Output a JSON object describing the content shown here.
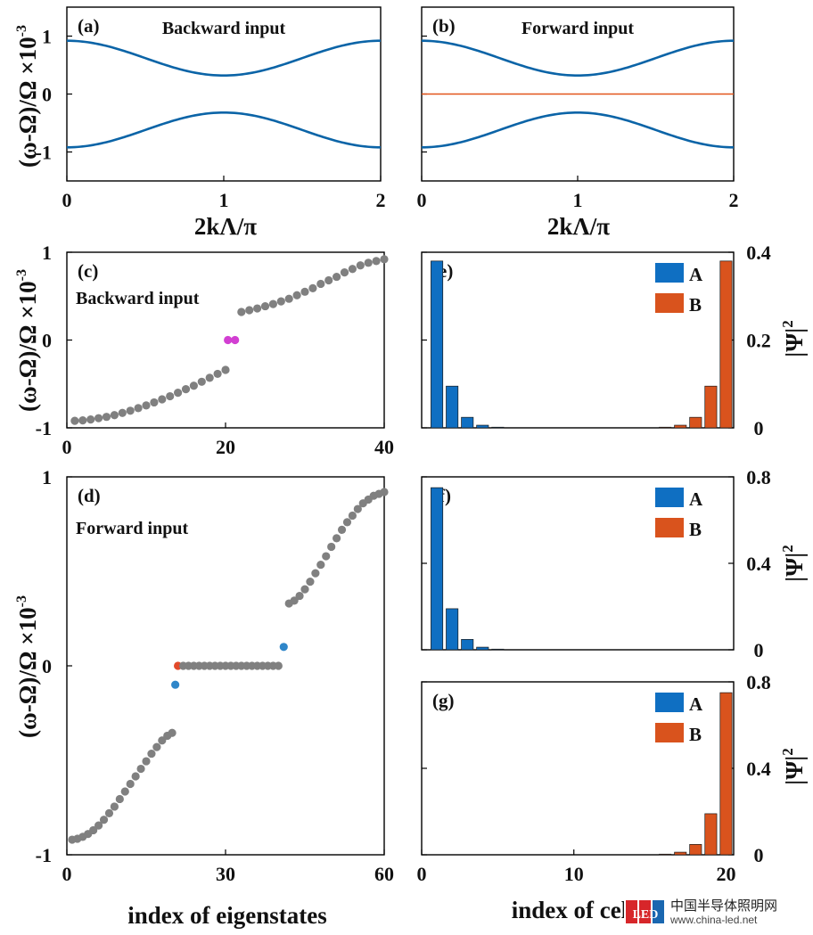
{
  "figure": {
    "y_axis_label_top": "(ω-Ω)/Ω ×10",
    "y_axis_label_mid": "(ω-Ω)/Ω ×10",
    "y_axis_label_bottom": "(ω-Ω)/Ω ×10",
    "y_axis_exponent": "-3",
    "x_axis_label_band": "2kΛ/π",
    "x_axis_label_eigen": "index of eigenstates",
    "x_axis_label_cells": "index of cells",
    "psi_label": "|Ψ|",
    "psi_exp": "2"
  },
  "colors": {
    "band": "#0b64a7",
    "flat": "#e2541b",
    "gray_dot": "#808080",
    "magenta": "#d23fd2",
    "blue_dot": "#2f86c9",
    "red_dot": "#e24a2a",
    "bar_A": "#0f6fc2",
    "bar_B": "#d9531d"
  },
  "chart_data": [
    {
      "id": "a",
      "type": "line",
      "panel_label": "(a)",
      "title": "Backward input",
      "x_range": [
        0,
        2
      ],
      "y_range": [
        -1.5,
        1.5
      ],
      "x_ticks": [
        "0",
        "1",
        "2"
      ],
      "y_ticks": [
        "-1",
        "0",
        "1"
      ],
      "series": [
        {
          "x": [
            0,
            0.25,
            0.5,
            0.75,
            1,
            1.25,
            1.5,
            1.75,
            2
          ],
          "y": [
            0.92,
            0.87,
            0.71,
            0.48,
            0.32,
            0.48,
            0.71,
            0.87,
            0.92
          ]
        },
        {
          "x": [
            0,
            0.25,
            0.5,
            0.75,
            1,
            1.25,
            1.5,
            1.75,
            2
          ],
          "y": [
            -0.92,
            -0.87,
            -0.71,
            -0.48,
            -0.32,
            -0.48,
            -0.71,
            -0.87,
            -0.92
          ]
        }
      ]
    },
    {
      "id": "b",
      "type": "line",
      "panel_label": "(b)",
      "title": "Forward input",
      "x_range": [
        0,
        2
      ],
      "y_range": [
        -1.5,
        1.5
      ],
      "x_ticks": [
        "0",
        "1",
        "2"
      ],
      "series": [
        {
          "x": [
            0,
            0.25,
            0.5,
            0.75,
            1,
            1.25,
            1.5,
            1.75,
            2
          ],
          "y": [
            0.92,
            0.87,
            0.71,
            0.48,
            0.32,
            0.48,
            0.71,
            0.87,
            0.92
          ]
        },
        {
          "x": [
            0,
            0.25,
            0.5,
            0.75,
            1,
            1.25,
            1.5,
            1.75,
            2
          ],
          "y": [
            -0.92,
            -0.87,
            -0.71,
            -0.48,
            -0.32,
            -0.48,
            -0.71,
            -0.87,
            -0.92
          ]
        },
        {
          "x": [
            0,
            2
          ],
          "y": [
            0,
            0
          ]
        }
      ]
    },
    {
      "id": "c",
      "type": "scatter",
      "panel_label": "(c)",
      "title": "Backward input",
      "x_range": [
        0,
        40
      ],
      "y_range": [
        -1,
        1
      ],
      "x_ticks": [
        "0",
        "20",
        "40"
      ],
      "y_ticks": [
        "-1",
        "0",
        "1"
      ],
      "points": [
        {
          "x": 1,
          "y": -0.92
        },
        {
          "x": 2,
          "y": -0.915
        },
        {
          "x": 3,
          "y": -0.905
        },
        {
          "x": 4,
          "y": -0.89
        },
        {
          "x": 5,
          "y": -0.875
        },
        {
          "x": 6,
          "y": -0.855
        },
        {
          "x": 7,
          "y": -0.83
        },
        {
          "x": 8,
          "y": -0.805
        },
        {
          "x": 9,
          "y": -0.775
        },
        {
          "x": 10,
          "y": -0.745
        },
        {
          "x": 11,
          "y": -0.71
        },
        {
          "x": 12,
          "y": -0.675
        },
        {
          "x": 13,
          "y": -0.64
        },
        {
          "x": 14,
          "y": -0.6
        },
        {
          "x": 15,
          "y": -0.56
        },
        {
          "x": 16,
          "y": -0.52
        },
        {
          "x": 17,
          "y": -0.475
        },
        {
          "x": 18,
          "y": -0.43
        },
        {
          "x": 19,
          "y": -0.385
        },
        {
          "x": 20,
          "y": -0.34
        },
        {
          "x": 20.3,
          "y": 0.0,
          "color": "magenta"
        },
        {
          "x": 21.2,
          "y": 0.0,
          "color": "magenta"
        },
        {
          "x": 22,
          "y": 0.32
        },
        {
          "x": 23,
          "y": 0.34
        },
        {
          "x": 24,
          "y": 0.36
        },
        {
          "x": 25,
          "y": 0.385
        },
        {
          "x": 26,
          "y": 0.41
        },
        {
          "x": 27,
          "y": 0.44
        },
        {
          "x": 28,
          "y": 0.47
        },
        {
          "x": 29,
          "y": 0.51
        },
        {
          "x": 30,
          "y": 0.55
        },
        {
          "x": 31,
          "y": 0.59
        },
        {
          "x": 32,
          "y": 0.64
        },
        {
          "x": 33,
          "y": 0.68
        },
        {
          "x": 34,
          "y": 0.72
        },
        {
          "x": 35,
          "y": 0.77
        },
        {
          "x": 36,
          "y": 0.81
        },
        {
          "x": 37,
          "y": 0.85
        },
        {
          "x": 38,
          "y": 0.88
        },
        {
          "x": 39,
          "y": 0.9
        },
        {
          "x": 40,
          "y": 0.92
        }
      ]
    },
    {
      "id": "d",
      "type": "scatter",
      "panel_label": "(d)",
      "title": "Forward input",
      "x_range": [
        0,
        60
      ],
      "y_range": [
        -1,
        1
      ],
      "x_ticks": [
        "0",
        "30",
        "60"
      ],
      "y_ticks": [
        "-1",
        "0",
        "1"
      ],
      "points": [
        {
          "x": 1,
          "y": -0.92
        },
        {
          "x": 2,
          "y": -0.915
        },
        {
          "x": 3,
          "y": -0.905
        },
        {
          "x": 4,
          "y": -0.89
        },
        {
          "x": 5,
          "y": -0.87
        },
        {
          "x": 6,
          "y": -0.845
        },
        {
          "x": 7,
          "y": -0.815
        },
        {
          "x": 8,
          "y": -0.78
        },
        {
          "x": 9,
          "y": -0.745
        },
        {
          "x": 10,
          "y": -0.705
        },
        {
          "x": 11,
          "y": -0.665
        },
        {
          "x": 12,
          "y": -0.625
        },
        {
          "x": 13,
          "y": -0.585
        },
        {
          "x": 14,
          "y": -0.545
        },
        {
          "x": 15,
          "y": -0.505
        },
        {
          "x": 16,
          "y": -0.465
        },
        {
          "x": 17,
          "y": -0.43
        },
        {
          "x": 18,
          "y": -0.395
        },
        {
          "x": 19,
          "y": -0.37
        },
        {
          "x": 19.9,
          "y": -0.355
        },
        {
          "x": 20.5,
          "y": -0.1,
          "color": "blue"
        },
        {
          "x": 21,
          "y": 0.0,
          "color": "red"
        },
        {
          "x": 22,
          "y": 0
        },
        {
          "x": 23,
          "y": 0
        },
        {
          "x": 24,
          "y": 0
        },
        {
          "x": 25,
          "y": 0
        },
        {
          "x": 26,
          "y": 0
        },
        {
          "x": 27,
          "y": 0
        },
        {
          "x": 28,
          "y": 0
        },
        {
          "x": 29,
          "y": 0
        },
        {
          "x": 30,
          "y": 0
        },
        {
          "x": 31,
          "y": 0
        },
        {
          "x": 32,
          "y": 0
        },
        {
          "x": 33,
          "y": 0
        },
        {
          "x": 34,
          "y": 0
        },
        {
          "x": 35,
          "y": 0
        },
        {
          "x": 36,
          "y": 0
        },
        {
          "x": 37,
          "y": 0
        },
        {
          "x": 38,
          "y": 0
        },
        {
          "x": 39,
          "y": 0
        },
        {
          "x": 40,
          "y": 0
        },
        {
          "x": 41,
          "y": 0.1,
          "color": "blue"
        },
        {
          "x": 42,
          "y": 0.33
        },
        {
          "x": 43,
          "y": 0.345
        },
        {
          "x": 44,
          "y": 0.37
        },
        {
          "x": 45,
          "y": 0.405
        },
        {
          "x": 46,
          "y": 0.445
        },
        {
          "x": 47,
          "y": 0.49
        },
        {
          "x": 48,
          "y": 0.535
        },
        {
          "x": 49,
          "y": 0.58
        },
        {
          "x": 50,
          "y": 0.63
        },
        {
          "x": 51,
          "y": 0.675
        },
        {
          "x": 52,
          "y": 0.72
        },
        {
          "x": 53,
          "y": 0.76
        },
        {
          "x": 54,
          "y": 0.795
        },
        {
          "x": 55,
          "y": 0.83
        },
        {
          "x": 56,
          "y": 0.86
        },
        {
          "x": 57,
          "y": 0.88
        },
        {
          "x": 58,
          "y": 0.9
        },
        {
          "x": 59,
          "y": 0.91
        },
        {
          "x": 60,
          "y": 0.92
        }
      ]
    },
    {
      "id": "e",
      "type": "bar",
      "panel_label": "(e)",
      "x_range": [
        0,
        20.5
      ],
      "y_range": [
        0,
        0.4
      ],
      "y_ticks": [
        "0",
        "0.2",
        "0.4"
      ],
      "legend": [
        "A",
        "B"
      ],
      "series": [
        {
          "name": "A",
          "x": [
            1,
            2,
            3,
            4,
            5
          ],
          "values": [
            0.38,
            0.095,
            0.024,
            0.006,
            0.0015
          ]
        },
        {
          "name": "B",
          "x": [
            16,
            17,
            18,
            19,
            20
          ],
          "values": [
            0.0015,
            0.006,
            0.024,
            0.095,
            0.38
          ]
        }
      ]
    },
    {
      "id": "f",
      "type": "bar",
      "panel_label": "(f)",
      "x_range": [
        0,
        20.5
      ],
      "y_range": [
        0,
        0.8
      ],
      "y_ticks": [
        "0",
        "0.4",
        "0.8"
      ],
      "legend": [
        "A",
        "B"
      ],
      "series": [
        {
          "name": "A",
          "x": [
            1,
            2,
            3,
            4,
            5
          ],
          "values": [
            0.75,
            0.19,
            0.048,
            0.012,
            0.003
          ]
        },
        {
          "name": "B",
          "x": [],
          "values": []
        }
      ]
    },
    {
      "id": "g",
      "type": "bar",
      "panel_label": "(g)",
      "x_range": [
        0,
        20.5
      ],
      "y_range": [
        0,
        0.8
      ],
      "x_ticks": [
        "0",
        "10",
        "20"
      ],
      "y_ticks": [
        "0",
        "0.4",
        "0.8"
      ],
      "legend": [
        "A",
        "B"
      ],
      "series": [
        {
          "name": "A",
          "x": [],
          "values": []
        },
        {
          "name": "B",
          "x": [
            16,
            17,
            18,
            19,
            20
          ],
          "values": [
            0.003,
            0.012,
            0.048,
            0.19,
            0.75
          ]
        }
      ]
    }
  ],
  "watermark": {
    "logo_text": "LED",
    "cn_text": "中国半导体照明网",
    "url": "www.china-led.net"
  }
}
